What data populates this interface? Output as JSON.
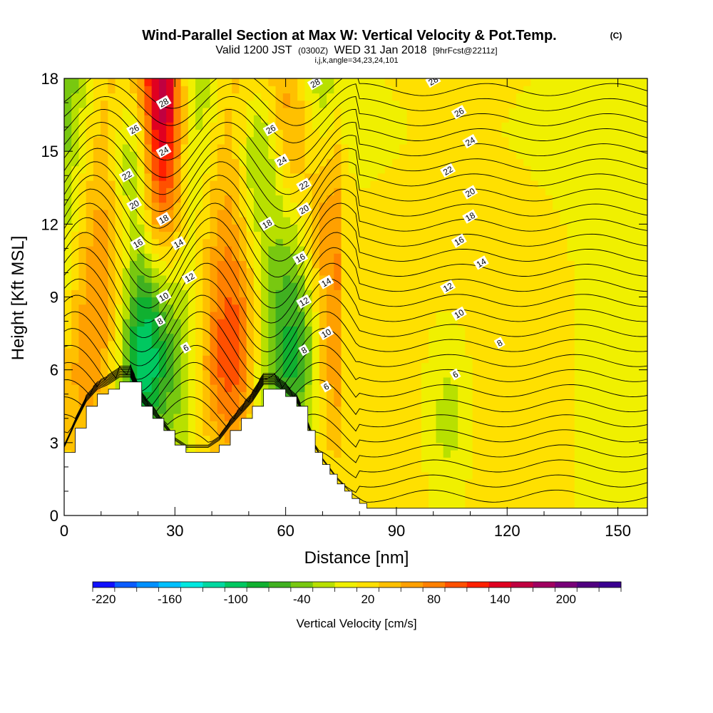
{
  "chart_data": {
    "type": "heatmap",
    "title": "Wind-Parallel Section at Max W: Vertical Velocity & Pot.Temp.",
    "title_mark": "(C)",
    "subtitle": {
      "valid": "Valid 1200 JST",
      "zulu": "(0300Z)",
      "date": "WED 31 Jan 2018",
      "forecast": "[9hrFcst@2211z]"
    },
    "params": "i,j,k,angle=34,23,24,101",
    "xlabel": "Distance [nm]",
    "ylabel": "Height [Kft MSL]",
    "xlim": [
      0,
      158
    ],
    "ylim": [
      0,
      18
    ],
    "xticks": [
      "0",
      "30",
      "60",
      "90",
      "120",
      "150"
    ],
    "yticks": [
      "0",
      "3",
      "6",
      "9",
      "12",
      "15",
      "18"
    ],
    "colorbar": {
      "label": "Vertical Velocity [cm/s]",
      "min": -230,
      "max": 250,
      "step": 20,
      "ticks": [
        "-220",
        "-160",
        "-100",
        "-40",
        "20",
        "80",
        "140",
        "200"
      ],
      "colors": [
        "#1010ff",
        "#0a5cff",
        "#0090ff",
        "#00c0ff",
        "#00e8e0",
        "#00d8a0",
        "#00c860",
        "#10b030",
        "#40b020",
        "#78c810",
        "#b8e000",
        "#f0f000",
        "#ffe000",
        "#ffc000",
        "#ffa000",
        "#ff8000",
        "#ff5000",
        "#ff2000",
        "#e00020",
        "#c00040",
        "#a00060",
        "#780078",
        "#500080",
        "#3a0090"
      ]
    },
    "terrain": [
      {
        "x": 0,
        "h": 2.6
      },
      {
        "x": 3,
        "h": 3.6
      },
      {
        "x": 6,
        "h": 4.5
      },
      {
        "x": 9,
        "h": 5.0
      },
      {
        "x": 12,
        "h": 5.2
      },
      {
        "x": 15,
        "h": 5.5
      },
      {
        "x": 18,
        "h": 5.5
      },
      {
        "x": 21,
        "h": 4.5
      },
      {
        "x": 24,
        "h": 4.0
      },
      {
        "x": 27,
        "h": 3.5
      },
      {
        "x": 30,
        "h": 2.9
      },
      {
        "x": 33,
        "h": 2.6
      },
      {
        "x": 36,
        "h": 2.6
      },
      {
        "x": 39,
        "h": 2.6
      },
      {
        "x": 42,
        "h": 2.9
      },
      {
        "x": 45,
        "h": 3.5
      },
      {
        "x": 48,
        "h": 4.0
      },
      {
        "x": 51,
        "h": 4.5
      },
      {
        "x": 54,
        "h": 5.2
      },
      {
        "x": 57,
        "h": 5.2
      },
      {
        "x": 60,
        "h": 4.9
      },
      {
        "x": 63,
        "h": 4.5
      },
      {
        "x": 66,
        "h": 3.5
      },
      {
        "x": 68,
        "h": 2.6
      },
      {
        "x": 70,
        "h": 2.1
      },
      {
        "x": 72,
        "h": 1.7
      },
      {
        "x": 74,
        "h": 1.3
      },
      {
        "x": 76,
        "h": 1.0
      },
      {
        "x": 78,
        "h": 0.7
      },
      {
        "x": 80,
        "h": 0.5
      },
      {
        "x": 82,
        "h": 0.3
      },
      {
        "x": 84,
        "h": 0.3
      },
      {
        "x": 158,
        "h": 0.3
      }
    ],
    "updrafts": [
      {
        "x": 27,
        "h": 18,
        "value": 170
      },
      {
        "x": 27,
        "h": 13,
        "value": 120
      },
      {
        "x": 62,
        "h": 16,
        "value": 90
      },
      {
        "x": 69,
        "h": 12,
        "value": 60
      },
      {
        "x": 47,
        "h": 6,
        "value": 70
      }
    ],
    "downdrafts": [
      {
        "x": 18,
        "h": 15,
        "value": -90
      },
      {
        "x": 21,
        "h": 7,
        "value": -80
      },
      {
        "x": 52,
        "h": 15,
        "value": -90
      },
      {
        "x": 64,
        "h": 6,
        "value": -60
      },
      {
        "x": 33,
        "h": 5,
        "value": -50
      },
      {
        "x": 104,
        "h": 4,
        "value": -40
      }
    ],
    "contour_labels": [
      {
        "text": "28",
        "x": 27,
        "h": 17.0
      },
      {
        "text": "26",
        "x": 19,
        "h": 15.9
      },
      {
        "text": "24",
        "x": 27,
        "h": 15.0
      },
      {
        "text": "22",
        "x": 17,
        "h": 14.0
      },
      {
        "text": "20",
        "x": 19,
        "h": 12.8
      },
      {
        "text": "18",
        "x": 27,
        "h": 12.2
      },
      {
        "text": "16",
        "x": 20,
        "h": 11.2
      },
      {
        "text": "14",
        "x": 31,
        "h": 11.2
      },
      {
        "text": "12",
        "x": 34,
        "h": 9.8
      },
      {
        "text": "10",
        "x": 27,
        "h": 9.0
      },
      {
        "text": "8",
        "x": 26,
        "h": 8.0
      },
      {
        "text": "6",
        "x": 33,
        "h": 6.9
      },
      {
        "text": "28",
        "x": 68,
        "h": 17.8
      },
      {
        "text": "26",
        "x": 56,
        "h": 15.9
      },
      {
        "text": "24",
        "x": 59,
        "h": 14.6
      },
      {
        "text": "22",
        "x": 65,
        "h": 13.6
      },
      {
        "text": "20",
        "x": 65,
        "h": 12.6
      },
      {
        "text": "18",
        "x": 55,
        "h": 12.0
      },
      {
        "text": "16",
        "x": 64,
        "h": 10.6
      },
      {
        "text": "14",
        "x": 71,
        "h": 9.6
      },
      {
        "text": "12",
        "x": 65,
        "h": 8.8
      },
      {
        "text": "10",
        "x": 71,
        "h": 7.5
      },
      {
        "text": "8",
        "x": 65,
        "h": 6.8
      },
      {
        "text": "6",
        "x": 71,
        "h": 5.3
      },
      {
        "text": "28",
        "x": 100,
        "h": 17.9
      },
      {
        "text": "26",
        "x": 107,
        "h": 16.6
      },
      {
        "text": "24",
        "x": 110,
        "h": 15.4
      },
      {
        "text": "22",
        "x": 104,
        "h": 14.2
      },
      {
        "text": "20",
        "x": 110,
        "h": 13.3
      },
      {
        "text": "18",
        "x": 110,
        "h": 12.3
      },
      {
        "text": "16",
        "x": 107,
        "h": 11.3
      },
      {
        "text": "14",
        "x": 113,
        "h": 10.4
      },
      {
        "text": "12",
        "x": 104,
        "h": 9.4
      },
      {
        "text": "10",
        "x": 107,
        "h": 8.3
      },
      {
        "text": "8",
        "x": 118,
        "h": 7.1
      },
      {
        "text": "6",
        "x": 106,
        "h": 5.8
      }
    ]
  }
}
